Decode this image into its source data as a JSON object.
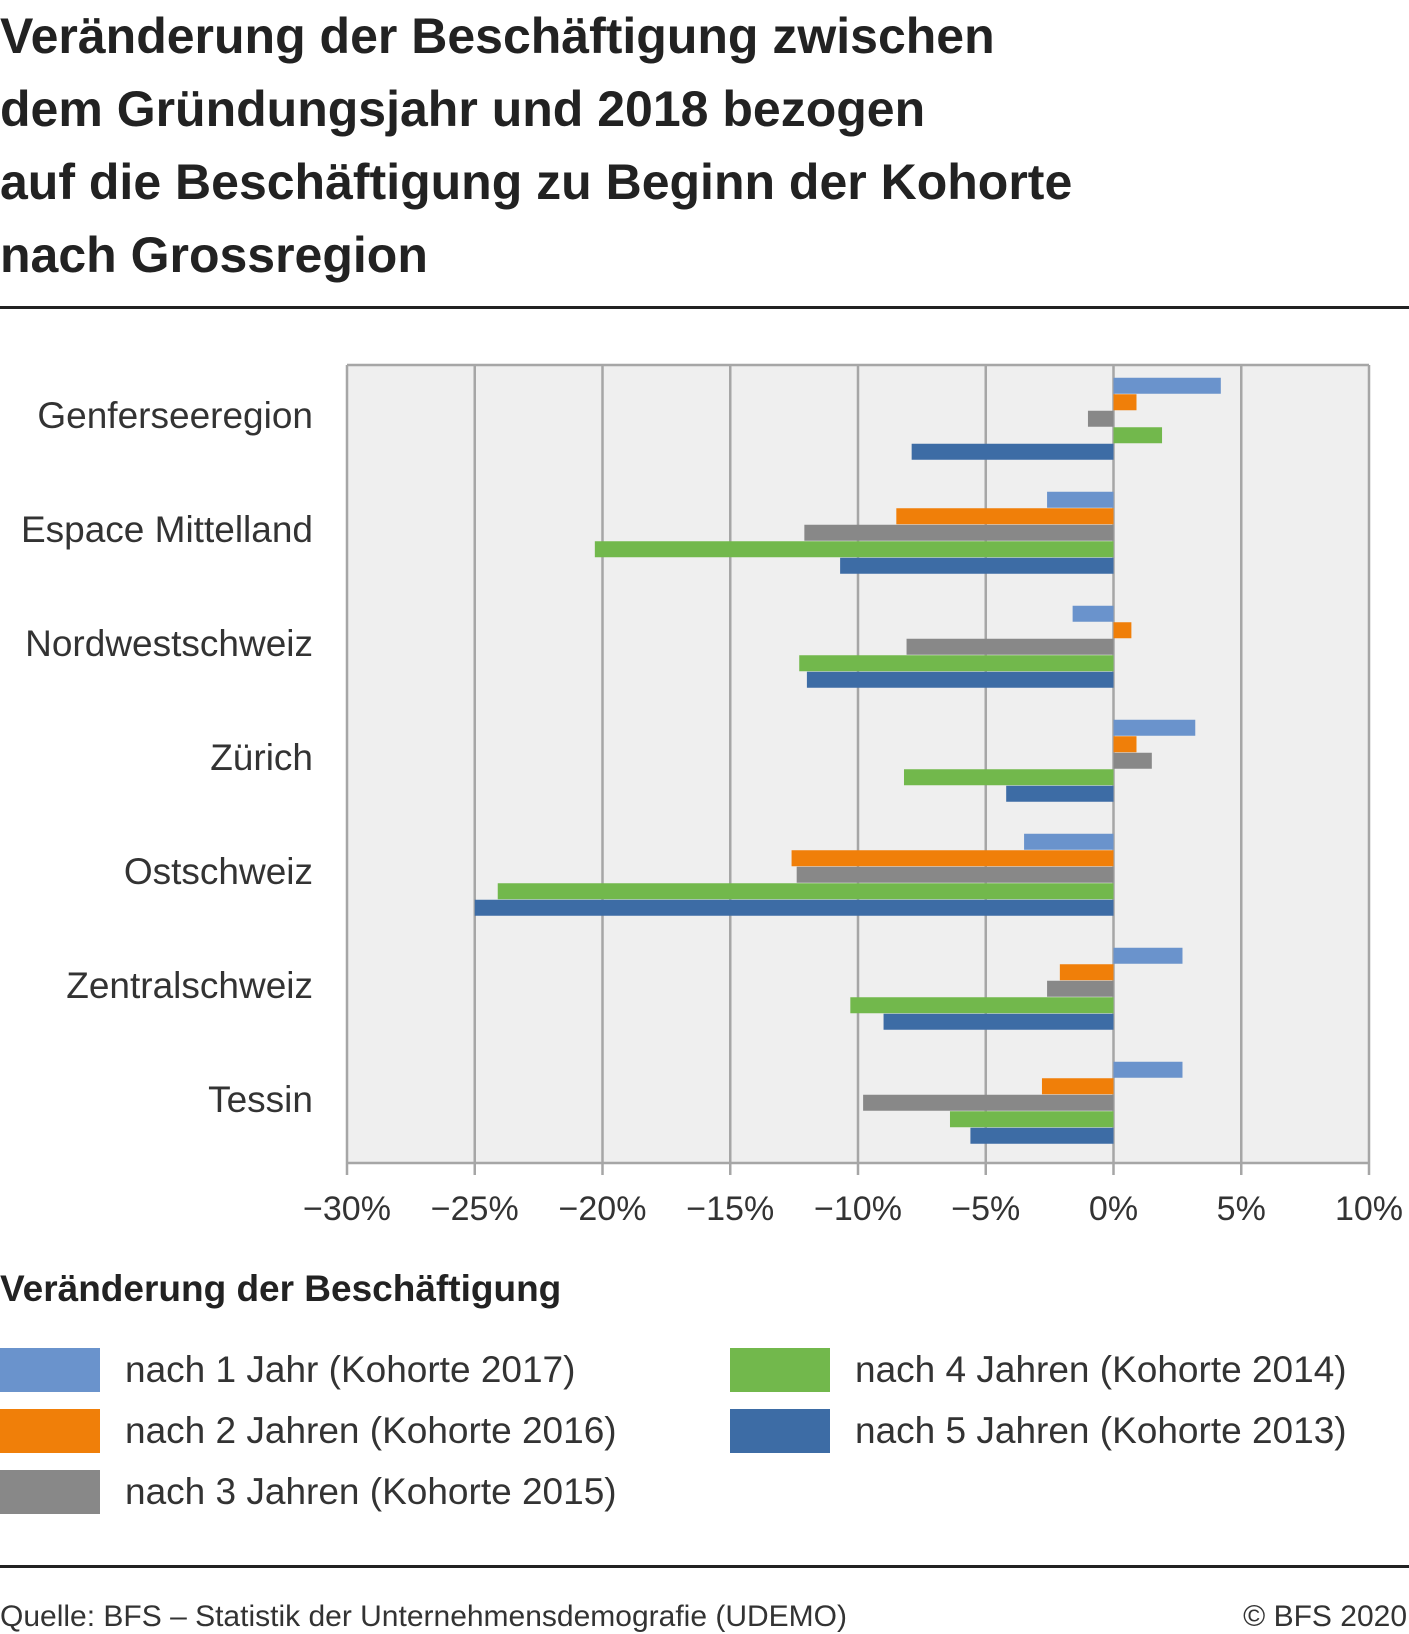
{
  "title_lines": [
    "Veränderung der Beschäftigung zwischen",
    "dem Gründungsjahr und 2018 bezogen",
    "auf die Beschäftigung zu Beginn der Kohorte",
    "nach Grossregion"
  ],
  "legend": {
    "title": "Veränderung der Beschäftigung",
    "items": [
      {
        "label": "nach 1 Jahr (Kohorte 2017)",
        "color": "#6A93CC"
      },
      {
        "label": "nach 2 Jahren (Kohorte 2016)",
        "color": "#F07F09"
      },
      {
        "label": "nach 3 Jahren (Kohorte 2015)",
        "color": "#888888"
      },
      {
        "label": "nach 4 Jahren (Kohorte 2014)",
        "color": "#72B84C"
      },
      {
        "label": "nach 5 Jahren (Kohorte 2013)",
        "color": "#3D6CA5"
      }
    ]
  },
  "footer": {
    "source": "Quelle: BFS – Statistik der Unternehmensdemografie (UDEMO)",
    "copyright": "© BFS 2020"
  },
  "chart_data": {
    "type": "bar",
    "orientation": "horizontal",
    "categories": [
      "Genferseeregion",
      "Espace Mittelland",
      "Nordwestschweiz",
      "Zürich",
      "Ostschweiz",
      "Zentralschweiz",
      "Tessin"
    ],
    "x_ticks": [
      -30,
      -25,
      -20,
      -15,
      -10,
      -5,
      0,
      5,
      10
    ],
    "x_tick_labels": [
      "−30%",
      "−25%",
      "−20%",
      "−15%",
      "−10%",
      "−5%",
      "0%",
      "5%",
      "10%"
    ],
    "xlim": [
      -30,
      10
    ],
    "grid": true,
    "plot_background": "#EFEFEF",
    "grid_color": "#A6A6A6",
    "legend_position": "bottom",
    "series": [
      {
        "name": "nach 1 Jahr (Kohorte 2017)",
        "color": "#6A93CC",
        "values": [
          4.2,
          -2.6,
          -1.6,
          3.2,
          -3.5,
          2.7,
          2.7
        ]
      },
      {
        "name": "nach 2 Jahren (Kohorte 2016)",
        "color": "#F07F09",
        "values": [
          0.9,
          -8.5,
          0.7,
          0.9,
          -12.6,
          -2.1,
          -2.8
        ]
      },
      {
        "name": "nach 3 Jahren (Kohorte 2015)",
        "color": "#888888",
        "values": [
          -1.0,
          -12.1,
          -8.1,
          1.5,
          -12.4,
          -2.6,
          -9.8
        ]
      },
      {
        "name": "nach 4 Jahren (Kohorte 2014)",
        "color": "#72B84C",
        "values": [
          1.9,
          -20.3,
          -12.3,
          -8.2,
          -24.1,
          -10.3,
          -6.4
        ]
      },
      {
        "name": "nach 5 Jahren (Kohorte 2013)",
        "color": "#3D6CA5",
        "values": [
          -7.9,
          -10.7,
          -12.0,
          -4.2,
          -25.0,
          -9.0,
          -5.6
        ]
      }
    ]
  }
}
